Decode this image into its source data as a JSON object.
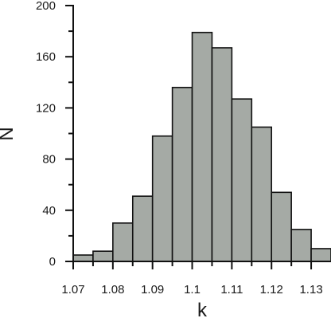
{
  "chart_data": {
    "type": "bar",
    "xlabel": "k",
    "ylabel": "N",
    "xlim": [
      1.07,
      1.135
    ],
    "ylim": [
      0,
      200
    ],
    "bin_width": 0.005,
    "bin_starts": [
      1.07,
      1.075,
      1.08,
      1.085,
      1.09,
      1.095,
      1.1,
      1.105,
      1.11,
      1.115,
      1.12,
      1.125,
      1.13
    ],
    "values": [
      5,
      8,
      30,
      51,
      98,
      136,
      179,
      167,
      127,
      105,
      54,
      25,
      10
    ],
    "x_ticks": [
      1.07,
      1.08,
      1.09,
      1.1,
      1.11,
      1.12,
      1.13
    ],
    "x_tick_labels": [
      "1.07",
      "1.08",
      "1.09",
      "1.1",
      "1.11",
      "1.12",
      "1.13"
    ],
    "y_ticks": [
      0,
      40,
      80,
      120,
      160,
      200
    ],
    "y_tick_labels": [
      "0",
      "40",
      "80",
      "120",
      "160",
      "200"
    ],
    "bar_color": "#a5aaa5",
    "grid": false
  }
}
